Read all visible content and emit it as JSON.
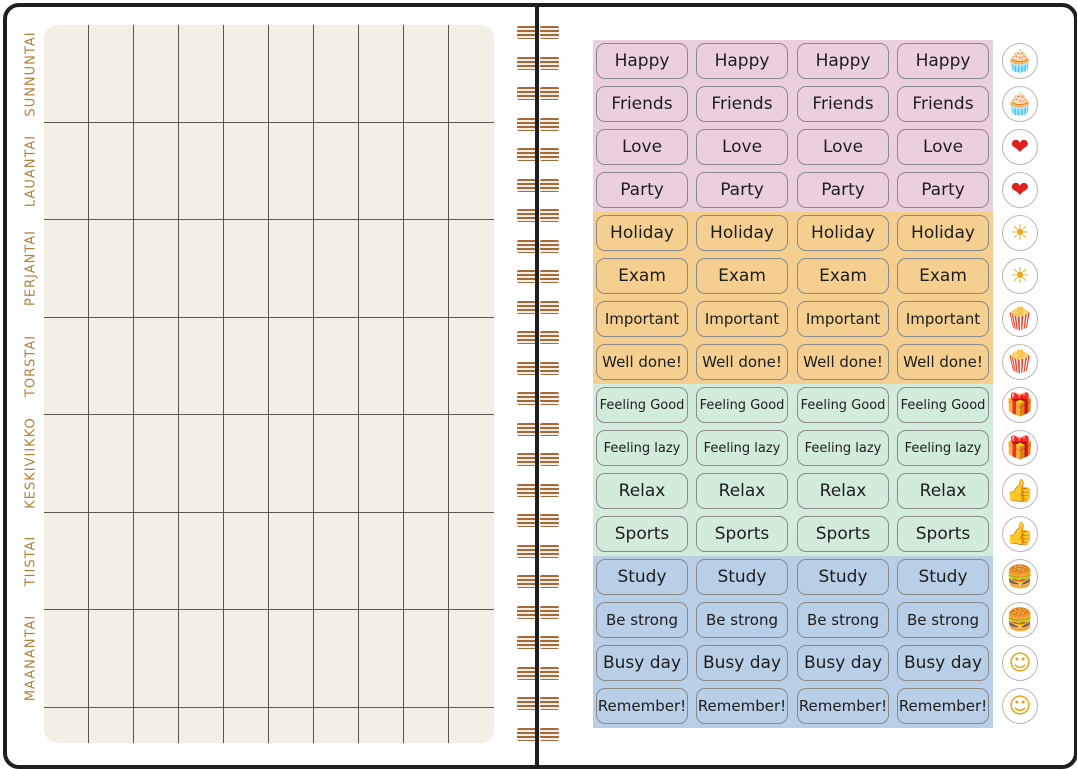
{
  "planner": {
    "days": [
      "SUNNUNTAI",
      "LAUANTAI",
      "PERJANTAI",
      "TORSTAI",
      "KESKIVIIKKO",
      "TIISTAI",
      "MAANANTAI"
    ]
  },
  "stickers": {
    "rows": [
      {
        "label": "Happy",
        "icon": "cupcake-icon",
        "glyph": "🧁",
        "color": "#ead0de"
      },
      {
        "label": "Friends",
        "icon": "cupcake-icon",
        "glyph": "🧁",
        "color": "#ead0de"
      },
      {
        "label": "Love",
        "icon": "heart-icon",
        "glyph": "❤",
        "color": "#ead0de"
      },
      {
        "label": "Party",
        "icon": "heart-icon",
        "glyph": "❤",
        "color": "#ead0de"
      },
      {
        "label": "Holiday",
        "icon": "sun-icon",
        "glyph": "☀",
        "color": "#f5cf90"
      },
      {
        "label": "Exam",
        "icon": "sun-icon",
        "glyph": "☀",
        "color": "#f5cf90"
      },
      {
        "label": "Important",
        "icon": "popcorn-icon",
        "glyph": "🍿",
        "color": "#f5cf90"
      },
      {
        "label": "Well done!",
        "icon": "popcorn-icon",
        "glyph": "🍿",
        "color": "#f5cf90"
      },
      {
        "label": "Feeling Good",
        "icon": "gift-icon",
        "glyph": "🎁",
        "color": "#d2ecd9"
      },
      {
        "label": "Feeling lazy",
        "icon": "gift-icon",
        "glyph": "🎁",
        "color": "#d2ecd9"
      },
      {
        "label": "Relax",
        "icon": "thumbs-up-icon",
        "glyph": "👍",
        "color": "#d2ecd9"
      },
      {
        "label": "Sports",
        "icon": "thumbs-up-icon",
        "glyph": "👍",
        "color": "#d2ecd9"
      },
      {
        "label": "Study",
        "icon": "burger-icon",
        "glyph": "🍔",
        "color": "#b9cfe7"
      },
      {
        "label": "Be strong",
        "icon": "burger-icon",
        "glyph": "🍔",
        "color": "#b9cfe7"
      },
      {
        "label": "Busy day",
        "icon": "smiley-icon",
        "glyph": "☺",
        "color": "#b9cfe7"
      },
      {
        "label": "Remember!",
        "icon": "smiley-icon",
        "glyph": "☺",
        "color": "#b9cfe7"
      }
    ]
  },
  "colors": {
    "pink": "#ead0de",
    "orange": "#f5cf90",
    "green": "#d2ecd9",
    "blue": "#b9cfe7",
    "day_label": "#b3813a"
  }
}
